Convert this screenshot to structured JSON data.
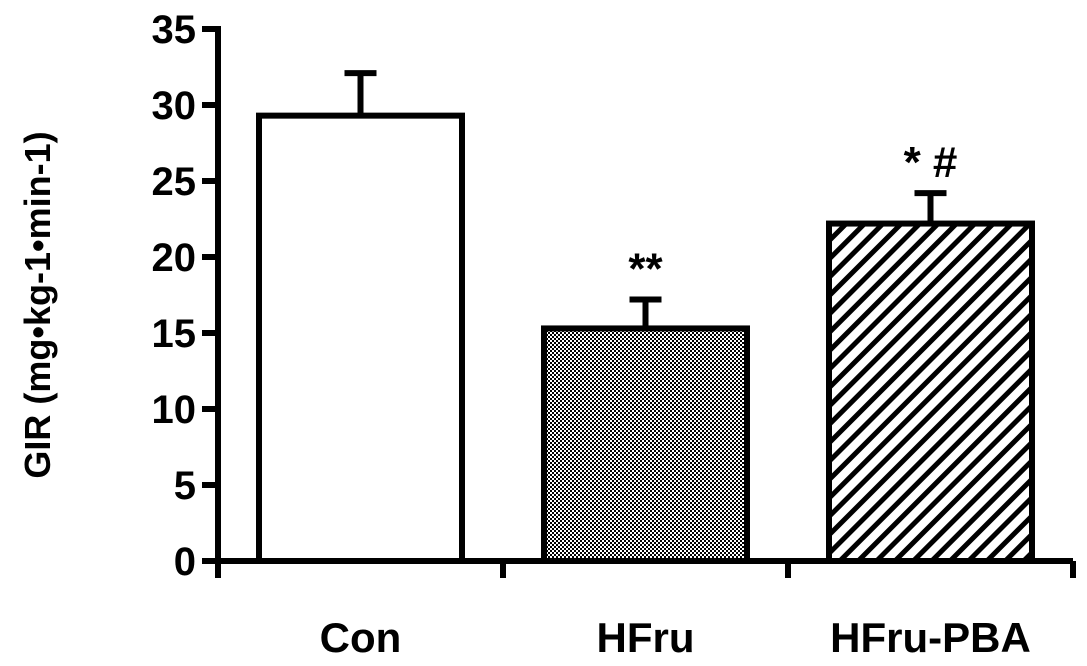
{
  "chart_data": {
    "type": "bar",
    "title": "",
    "xlabel": "",
    "ylabel": "GIR (mg•kg-1•min-1)",
    "ylim": [
      0,
      35
    ],
    "yticks": [
      "0",
      "5",
      "10",
      "15",
      "20",
      "25",
      "30",
      "35"
    ],
    "categories": [
      "Con",
      "HFru",
      "HFru-PBA"
    ],
    "values": [
      29.3,
      15.3,
      22.2
    ],
    "errors": [
      2.8,
      1.9,
      2.0
    ],
    "fills": [
      "white",
      "dense-dots",
      "diagonal-stripes"
    ],
    "annotations": [
      "",
      "**",
      "* #"
    ],
    "grid": false
  }
}
